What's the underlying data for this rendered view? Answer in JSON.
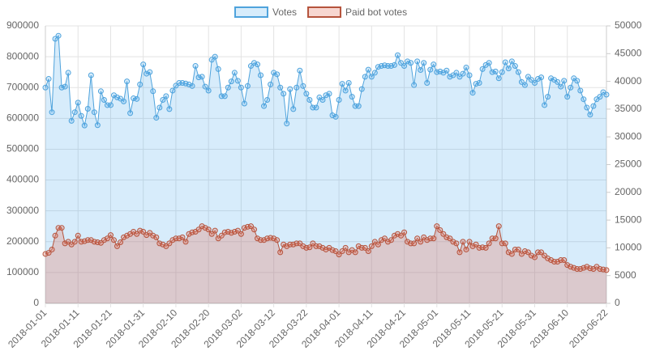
{
  "chart_data": {
    "type": "line",
    "x": [
      "2018-01-01",
      "2018-01-02",
      "2018-01-03",
      "2018-01-04",
      "2018-01-05",
      "2018-01-06",
      "2018-01-07",
      "2018-01-08",
      "2018-01-09",
      "2018-01-10",
      "2018-01-11",
      "2018-01-12",
      "2018-01-13",
      "2018-01-14",
      "2018-01-15",
      "2018-01-16",
      "2018-01-17",
      "2018-01-18",
      "2018-01-19",
      "2018-01-20",
      "2018-01-21",
      "2018-01-22",
      "2018-01-23",
      "2018-01-24",
      "2018-01-25",
      "2018-01-26",
      "2018-01-27",
      "2018-01-28",
      "2018-01-29",
      "2018-01-30",
      "2018-01-31",
      "2018-02-01",
      "2018-02-02",
      "2018-02-03",
      "2018-02-04",
      "2018-02-05",
      "2018-02-06",
      "2018-02-07",
      "2018-02-08",
      "2018-02-09",
      "2018-02-10",
      "2018-02-11",
      "2018-02-12",
      "2018-02-13",
      "2018-02-14",
      "2018-02-15",
      "2018-02-16",
      "2018-02-17",
      "2018-02-18",
      "2018-02-19",
      "2018-02-20",
      "2018-02-21",
      "2018-02-22",
      "2018-02-23",
      "2018-02-24",
      "2018-02-25",
      "2018-02-26",
      "2018-02-27",
      "2018-02-28",
      "2018-03-01",
      "2018-03-02",
      "2018-03-03",
      "2018-03-04",
      "2018-03-05",
      "2018-03-06",
      "2018-03-07",
      "2018-03-08",
      "2018-03-09",
      "2018-03-10",
      "2018-03-11",
      "2018-03-12",
      "2018-03-13",
      "2018-03-14",
      "2018-03-15",
      "2018-03-16",
      "2018-03-17",
      "2018-03-18",
      "2018-03-19",
      "2018-03-20",
      "2018-03-21",
      "2018-03-22",
      "2018-03-23",
      "2018-03-24",
      "2018-03-25",
      "2018-03-26",
      "2018-03-27",
      "2018-03-28",
      "2018-03-29",
      "2018-03-30",
      "2018-03-31",
      "2018-04-01",
      "2018-04-02",
      "2018-04-03",
      "2018-04-04",
      "2018-04-05",
      "2018-04-06",
      "2018-04-07",
      "2018-04-08",
      "2018-04-09",
      "2018-04-10",
      "2018-04-11",
      "2018-04-12",
      "2018-04-13",
      "2018-04-14",
      "2018-04-15",
      "2018-04-16",
      "2018-04-17",
      "2018-04-18",
      "2018-04-19",
      "2018-04-20",
      "2018-04-21",
      "2018-04-22",
      "2018-04-23",
      "2018-04-24",
      "2018-04-25",
      "2018-04-26",
      "2018-04-27",
      "2018-04-28",
      "2018-04-29",
      "2018-04-30",
      "2018-05-01",
      "2018-05-02",
      "2018-05-03",
      "2018-05-04",
      "2018-05-05",
      "2018-05-06",
      "2018-05-07",
      "2018-05-08",
      "2018-05-09",
      "2018-05-10",
      "2018-05-11",
      "2018-05-12",
      "2018-05-13",
      "2018-05-14",
      "2018-05-15",
      "2018-05-16",
      "2018-05-17",
      "2018-05-18",
      "2018-05-19",
      "2018-05-20",
      "2018-05-21",
      "2018-05-22",
      "2018-05-23",
      "2018-05-24",
      "2018-05-25",
      "2018-05-26",
      "2018-05-27",
      "2018-05-28",
      "2018-05-29",
      "2018-05-30",
      "2018-05-31",
      "2018-06-01",
      "2018-06-02",
      "2018-06-03",
      "2018-06-04",
      "2018-06-05",
      "2018-06-06",
      "2018-06-07",
      "2018-06-08",
      "2018-06-09",
      "2018-06-10",
      "2018-06-11",
      "2018-06-12",
      "2018-06-13",
      "2018-06-14",
      "2018-06-15",
      "2018-06-16",
      "2018-06-17",
      "2018-06-18",
      "2018-06-19",
      "2018-06-20",
      "2018-06-21",
      "2018-06-22"
    ],
    "xticks": [
      "2018-01-01",
      "2018-01-11",
      "2018-01-21",
      "2018-01-31",
      "2018-02-10",
      "2018-02-20",
      "2018-03-02",
      "2018-03-12",
      "2018-03-22",
      "2018-04-01",
      "2018-04-11",
      "2018-04-21",
      "2018-05-01",
      "2018-05-11",
      "2018-05-21",
      "2018-05-31",
      "2018-06-10",
      "2018-06-22"
    ],
    "series": [
      {
        "name": "Votes",
        "color": "#4fa3dc",
        "fill_color": "rgba(54,162,235,0.2)",
        "axis": "y",
        "values": [
          700000,
          728000,
          620000,
          858000,
          868000,
          700000,
          703000,
          748000,
          592000,
          620000,
          651000,
          608000,
          577000,
          631000,
          740000,
          620000,
          578000,
          688000,
          660000,
          643000,
          643000,
          675000,
          668000,
          664000,
          655000,
          720000,
          617000,
          665000,
          663000,
          710000,
          775000,
          745000,
          750000,
          688000,
          602000,
          635000,
          660000,
          672000,
          630000,
          690000,
          706000,
          715000,
          715000,
          713000,
          710000,
          705000,
          770000,
          733000,
          735000,
          703000,
          690000,
          790000,
          800000,
          760000,
          672000,
          672000,
          700000,
          720000,
          748000,
          722000,
          700000,
          648000,
          705000,
          770000,
          780000,
          775000,
          740000,
          640000,
          660000,
          710000,
          748000,
          743000,
          700000,
          680000,
          583000,
          695000,
          630000,
          700000,
          755000,
          705000,
          680000,
          660000,
          635000,
          635000,
          668000,
          660000,
          675000,
          680000,
          610000,
          605000,
          660000,
          712000,
          690000,
          715000,
          670000,
          640000,
          640000,
          695000,
          735000,
          758000,
          735000,
          748000,
          767000,
          770000,
          772000,
          770000,
          770000,
          773000,
          805000,
          780000,
          770000,
          785000,
          780000,
          708000,
          785000,
          757000,
          780000,
          715000,
          758000,
          775000,
          750000,
          752000,
          748000,
          755000,
          735000,
          740000,
          748000,
          735000,
          745000,
          765000,
          740000,
          683000,
          712000,
          715000,
          760000,
          773000,
          780000,
          750000,
          752000,
          730000,
          750000,
          782000,
          762000,
          785000,
          770000,
          750000,
          718000,
          708000,
          735000,
          725000,
          715000,
          728000,
          733000,
          643000,
          670000,
          730000,
          725000,
          718000,
          703000,
          722000,
          670000,
          700000,
          730000,
          722000,
          690000,
          662000,
          635000,
          612000,
          640000,
          662000,
          670000,
          685000,
          677000
        ]
      },
      {
        "name": "Paid bot votes",
        "color": "#b5533c",
        "fill_color": "rgba(230,120,100,0.3)",
        "axis": "y2",
        "values": [
          8900,
          9100,
          9700,
          12200,
          13600,
          13600,
          10800,
          11100,
          10600,
          11100,
          12200,
          11100,
          11200,
          11400,
          11400,
          11100,
          11000,
          10900,
          11400,
          11700,
          12300,
          11400,
          10300,
          11000,
          11900,
          12200,
          12500,
          12900,
          12500,
          13100,
          12900,
          12300,
          12700,
          12200,
          11900,
          10800,
          10600,
          10300,
          10800,
          11400,
          11700,
          11700,
          11900,
          11100,
          12500,
          12800,
          12900,
          13300,
          13900,
          13600,
          13300,
          12500,
          13100,
          11700,
          12200,
          12800,
          12900,
          12700,
          12900,
          13100,
          12500,
          13600,
          13800,
          13900,
          13300,
          11700,
          11400,
          11400,
          11700,
          11800,
          11700,
          11400,
          9200,
          10600,
          10300,
          10600,
          10600,
          10800,
          10800,
          10300,
          10000,
          10100,
          10800,
          10300,
          10300,
          10000,
          9700,
          10000,
          9600,
          9400,
          8800,
          9400,
          10000,
          9200,
          9600,
          9200,
          10300,
          10000,
          10000,
          9400,
          10300,
          11100,
          10600,
          11400,
          11700,
          11100,
          11400,
          12200,
          12500,
          12200,
          12800,
          11100,
          10800,
          10800,
          11700,
          11100,
          11900,
          11400,
          11700,
          11700,
          13900,
          13200,
          12500,
          11900,
          11700,
          11100,
          10800,
          9200,
          11100,
          9700,
          11100,
          10300,
          10600,
          10000,
          10100,
          10000,
          10800,
          11700,
          11700,
          13900,
          10800,
          10800,
          9200,
          8900,
          9700,
          9700,
          8900,
          9400,
          9200,
          8600,
          8300,
          9200,
          9200,
          8600,
          8100,
          7800,
          7500,
          7500,
          7800,
          7800,
          6900,
          6600,
          6400,
          6200,
          6200,
          6400,
          6600,
          6300,
          6200,
          6600,
          6200,
          6100,
          6000
        ]
      }
    ],
    "ylim": [
      0,
      900000
    ],
    "yticks": [
      0,
      100000,
      200000,
      300000,
      400000,
      500000,
      600000,
      700000,
      800000,
      900000
    ],
    "y2lim": [
      0,
      50000
    ],
    "y2ticks": [
      0,
      5000,
      10000,
      15000,
      20000,
      25000,
      30000,
      35000,
      40000,
      45000,
      50000
    ],
    "grid": true,
    "legend": "top"
  }
}
